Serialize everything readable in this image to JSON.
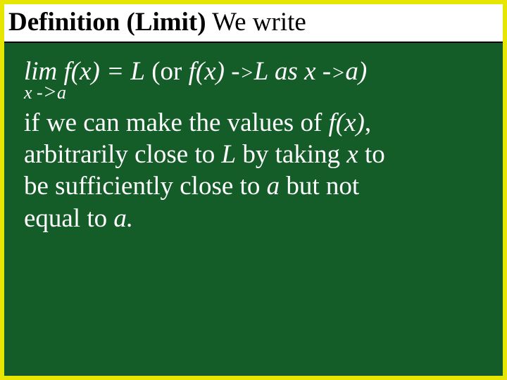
{
  "colors": {
    "outer_border": "#e6e600",
    "background": "#145c28",
    "title_bg": "#ffffff",
    "title_text": "#000000",
    "body_text": "#ffffff"
  },
  "typography": {
    "font_family": "Times New Roman",
    "title_fontsize_pt": 28,
    "body_fontsize_pt": 28,
    "subscript_fontsize_pt": 19
  },
  "title": {
    "def_label": "Definition",
    "spacer": "  ",
    "limit_label": "(Limit)",
    "we_write": " We write"
  },
  "equation": {
    "lim": "lim",
    "fx": " f(x)",
    "eq_L": " = L",
    "or_open": "   (or",
    "fx2": " f(x)",
    "arrow1a": " -",
    "arrow1b": ">",
    "L_as": "L as",
    "x_var": " x",
    "arrow2a": " -",
    "arrow2b": ">",
    "a_close": "a)",
    "sub_x": "x",
    "sub_arrowa": " -",
    "sub_arrowb": ">",
    "sub_a": "a"
  },
  "body": {
    "l1a": " if we can make the values of",
    "l1b": " f(x)",
    "l1c": ",",
    "l2a": "arbitrarily close to",
    "l2b": " L",
    "l2c": " by taking",
    "l2d": " x",
    "l2e": "  to",
    "l3a": "be sufficiently close to",
    "l3b": " a",
    "l3c": "  but not",
    "l4a": "equal to",
    "l4b": " a",
    "l4c": "."
  }
}
